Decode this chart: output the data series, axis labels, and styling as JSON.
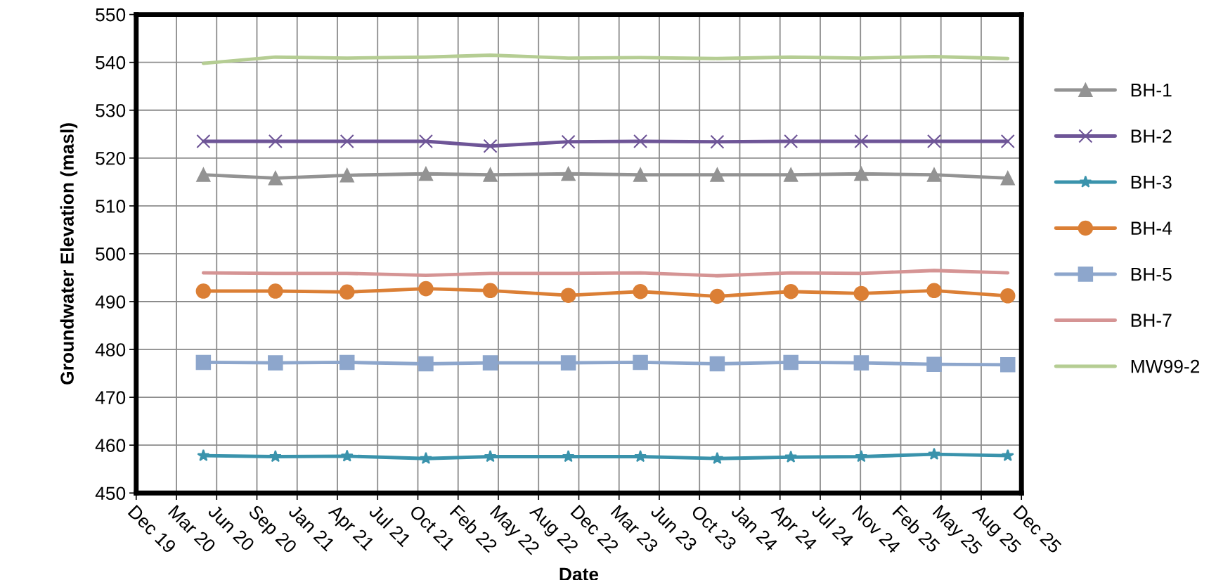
{
  "chart_data": {
    "type": "line",
    "xlabel": "Date",
    "ylabel": "Groundwater Elevation (masl)",
    "x": [
      "2020-05-16",
      "2020-11-11",
      "2021-05-08",
      "2021-11-20",
      "2022-04-29",
      "2022-11-09",
      "2023-05-07",
      "2023-11-14",
      "2024-05-15",
      "2024-11-06",
      "2025-05-06",
      "2025-11-05"
    ],
    "series": [
      {
        "name": "BH-1",
        "color": "#939393",
        "marker": "triangle",
        "values": [
          516.5,
          515.8,
          516.4,
          516.7,
          516.5,
          516.7,
          516.5,
          516.5,
          516.5,
          516.7,
          516.5,
          515.8
        ]
      },
      {
        "name": "BH-2",
        "color": "#6e5597",
        "marker": "cross",
        "values": [
          523.5,
          523.5,
          523.5,
          523.5,
          522.5,
          523.4,
          523.5,
          523.4,
          523.5,
          523.5,
          523.5,
          523.5
        ]
      },
      {
        "name": "BH-3",
        "color": "#3a93ac",
        "marker": "star",
        "values": [
          457.8,
          457.6,
          457.7,
          457.2,
          457.6,
          457.6,
          457.6,
          457.2,
          457.5,
          457.6,
          458.1,
          457.8
        ]
      },
      {
        "name": "BH-4",
        "color": "#db7f35",
        "marker": "circle",
        "values": [
          492.2,
          492.2,
          492.0,
          492.7,
          492.3,
          491.3,
          492.1,
          491.1,
          492.1,
          491.7,
          492.3,
          491.2
        ]
      },
      {
        "name": "BH-5",
        "color": "#8da6cc",
        "marker": "square",
        "values": [
          477.3,
          477.2,
          477.3,
          477.0,
          477.2,
          477.2,
          477.3,
          477.0,
          477.3,
          477.2,
          476.9,
          476.8
        ]
      },
      {
        "name": "BH-7",
        "color": "#d59494",
        "marker": "none",
        "values": [
          496.0,
          495.9,
          495.9,
          495.5,
          495.9,
          495.9,
          496.0,
          495.4,
          496.0,
          495.9,
          496.5,
          496.0
        ]
      },
      {
        "name": "MW99-2",
        "color": "#b5cd93",
        "marker": "none",
        "values": [
          539.8,
          541.1,
          540.9,
          541.1,
          541.5,
          540.9,
          541.0,
          540.8,
          541.1,
          540.9,
          541.2,
          540.8
        ]
      }
    ],
    "ylim": [
      450,
      550
    ],
    "yticks": [
      450,
      460,
      470,
      480,
      490,
      500,
      510,
      520,
      530,
      540,
      550
    ],
    "xlim": [
      "2019-12-01",
      "2025-12-09"
    ],
    "xticks": [
      {
        "value": "2019-12-01",
        "label": "Dec 19"
      },
      {
        "value": "2020-03-10",
        "label": "Mar 20"
      },
      {
        "value": "2020-06-18",
        "label": "Jun 20"
      },
      {
        "value": "2020-09-26",
        "label": "Sep 20"
      },
      {
        "value": "2021-01-04",
        "label": "Jan 21"
      },
      {
        "value": "2021-04-14",
        "label": "Apr 21"
      },
      {
        "value": "2021-07-23",
        "label": "Jul 21"
      },
      {
        "value": "2021-10-31",
        "label": "Oct 21"
      },
      {
        "value": "2022-02-08",
        "label": "Feb 22"
      },
      {
        "value": "2022-05-19",
        "label": "May 22"
      },
      {
        "value": "2022-08-27",
        "label": "Aug 22"
      },
      {
        "value": "2022-12-05",
        "label": "Dec 22"
      },
      {
        "value": "2023-03-15",
        "label": "Mar 23"
      },
      {
        "value": "2023-06-23",
        "label": "Jun 23"
      },
      {
        "value": "2023-10-01",
        "label": "Oct 23"
      },
      {
        "value": "2024-01-09",
        "label": "Jan 24"
      },
      {
        "value": "2024-04-18",
        "label": "Apr 24"
      },
      {
        "value": "2024-07-27",
        "label": "Jul 24"
      },
      {
        "value": "2024-11-04",
        "label": "Nov 24"
      },
      {
        "value": "2025-02-12",
        "label": "Feb 25"
      },
      {
        "value": "2025-05-23",
        "label": "May 25"
      },
      {
        "value": "2025-08-31",
        "label": "Aug 25"
      },
      {
        "value": "2025-12-09",
        "label": "Dec 25"
      }
    ],
    "grid": true,
    "legend": "right",
    "line_style": "solid"
  }
}
